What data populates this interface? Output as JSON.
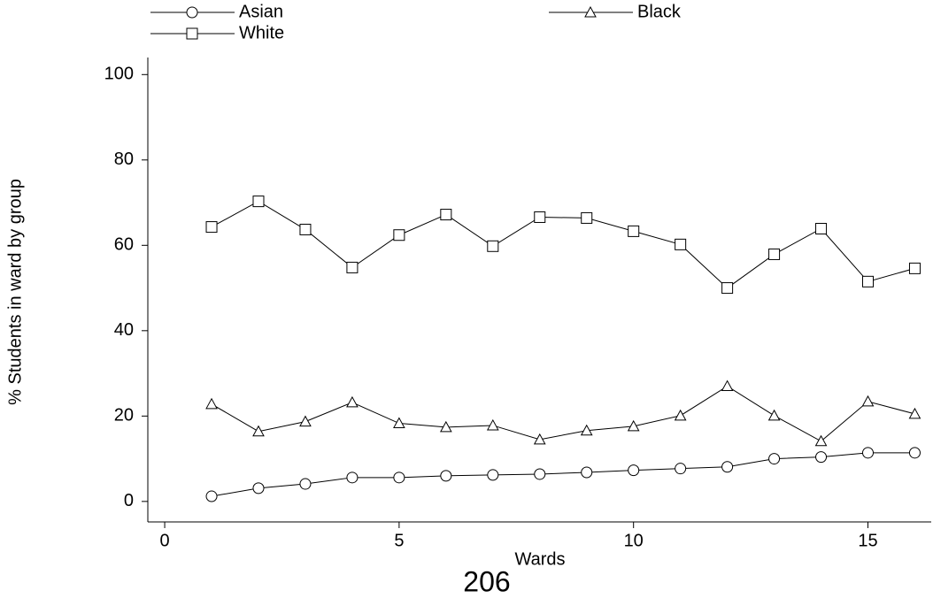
{
  "chart_data": {
    "type": "line",
    "xlabel": "Wards",
    "ylabel": "% Students in ward by group",
    "page_number": "206",
    "x": [
      1,
      2,
      3,
      4,
      5,
      6,
      7,
      8,
      9,
      10,
      11,
      12,
      13,
      14,
      15,
      16
    ],
    "series": [
      {
        "name": "Asian",
        "color": "#000000",
        "marker": "circle",
        "values": [
          1.2,
          3.1,
          4.1,
          5.6,
          5.6,
          6.0,
          6.2,
          6.4,
          6.8,
          7.3,
          7.7,
          8.1,
          10.0,
          10.4,
          11.4,
          11.4
        ]
      },
      {
        "name": "Black",
        "color": "#000000",
        "marker": "triangle",
        "values": [
          22.8,
          16.4,
          18.7,
          23.2,
          18.3,
          17.4,
          17.8,
          14.5,
          16.6,
          17.6,
          20.1,
          27.0,
          20.1,
          14.1,
          23.4,
          20.5
        ]
      },
      {
        "name": "White",
        "color": "#000000",
        "marker": "square",
        "values": [
          64.3,
          70.3,
          63.7,
          54.8,
          62.4,
          67.2,
          59.8,
          66.6,
          66.4,
          63.3,
          60.2,
          50.0,
          57.9,
          63.9,
          51.5,
          54.6
        ]
      }
    ],
    "xlim": [
      -0.36,
      16.35
    ],
    "xticks": [
      0,
      5,
      10,
      15
    ],
    "ylim": [
      -4.8,
      104
    ],
    "yticks": [
      0,
      20,
      40,
      60,
      80,
      100
    ],
    "grid": false,
    "legend": "top"
  }
}
